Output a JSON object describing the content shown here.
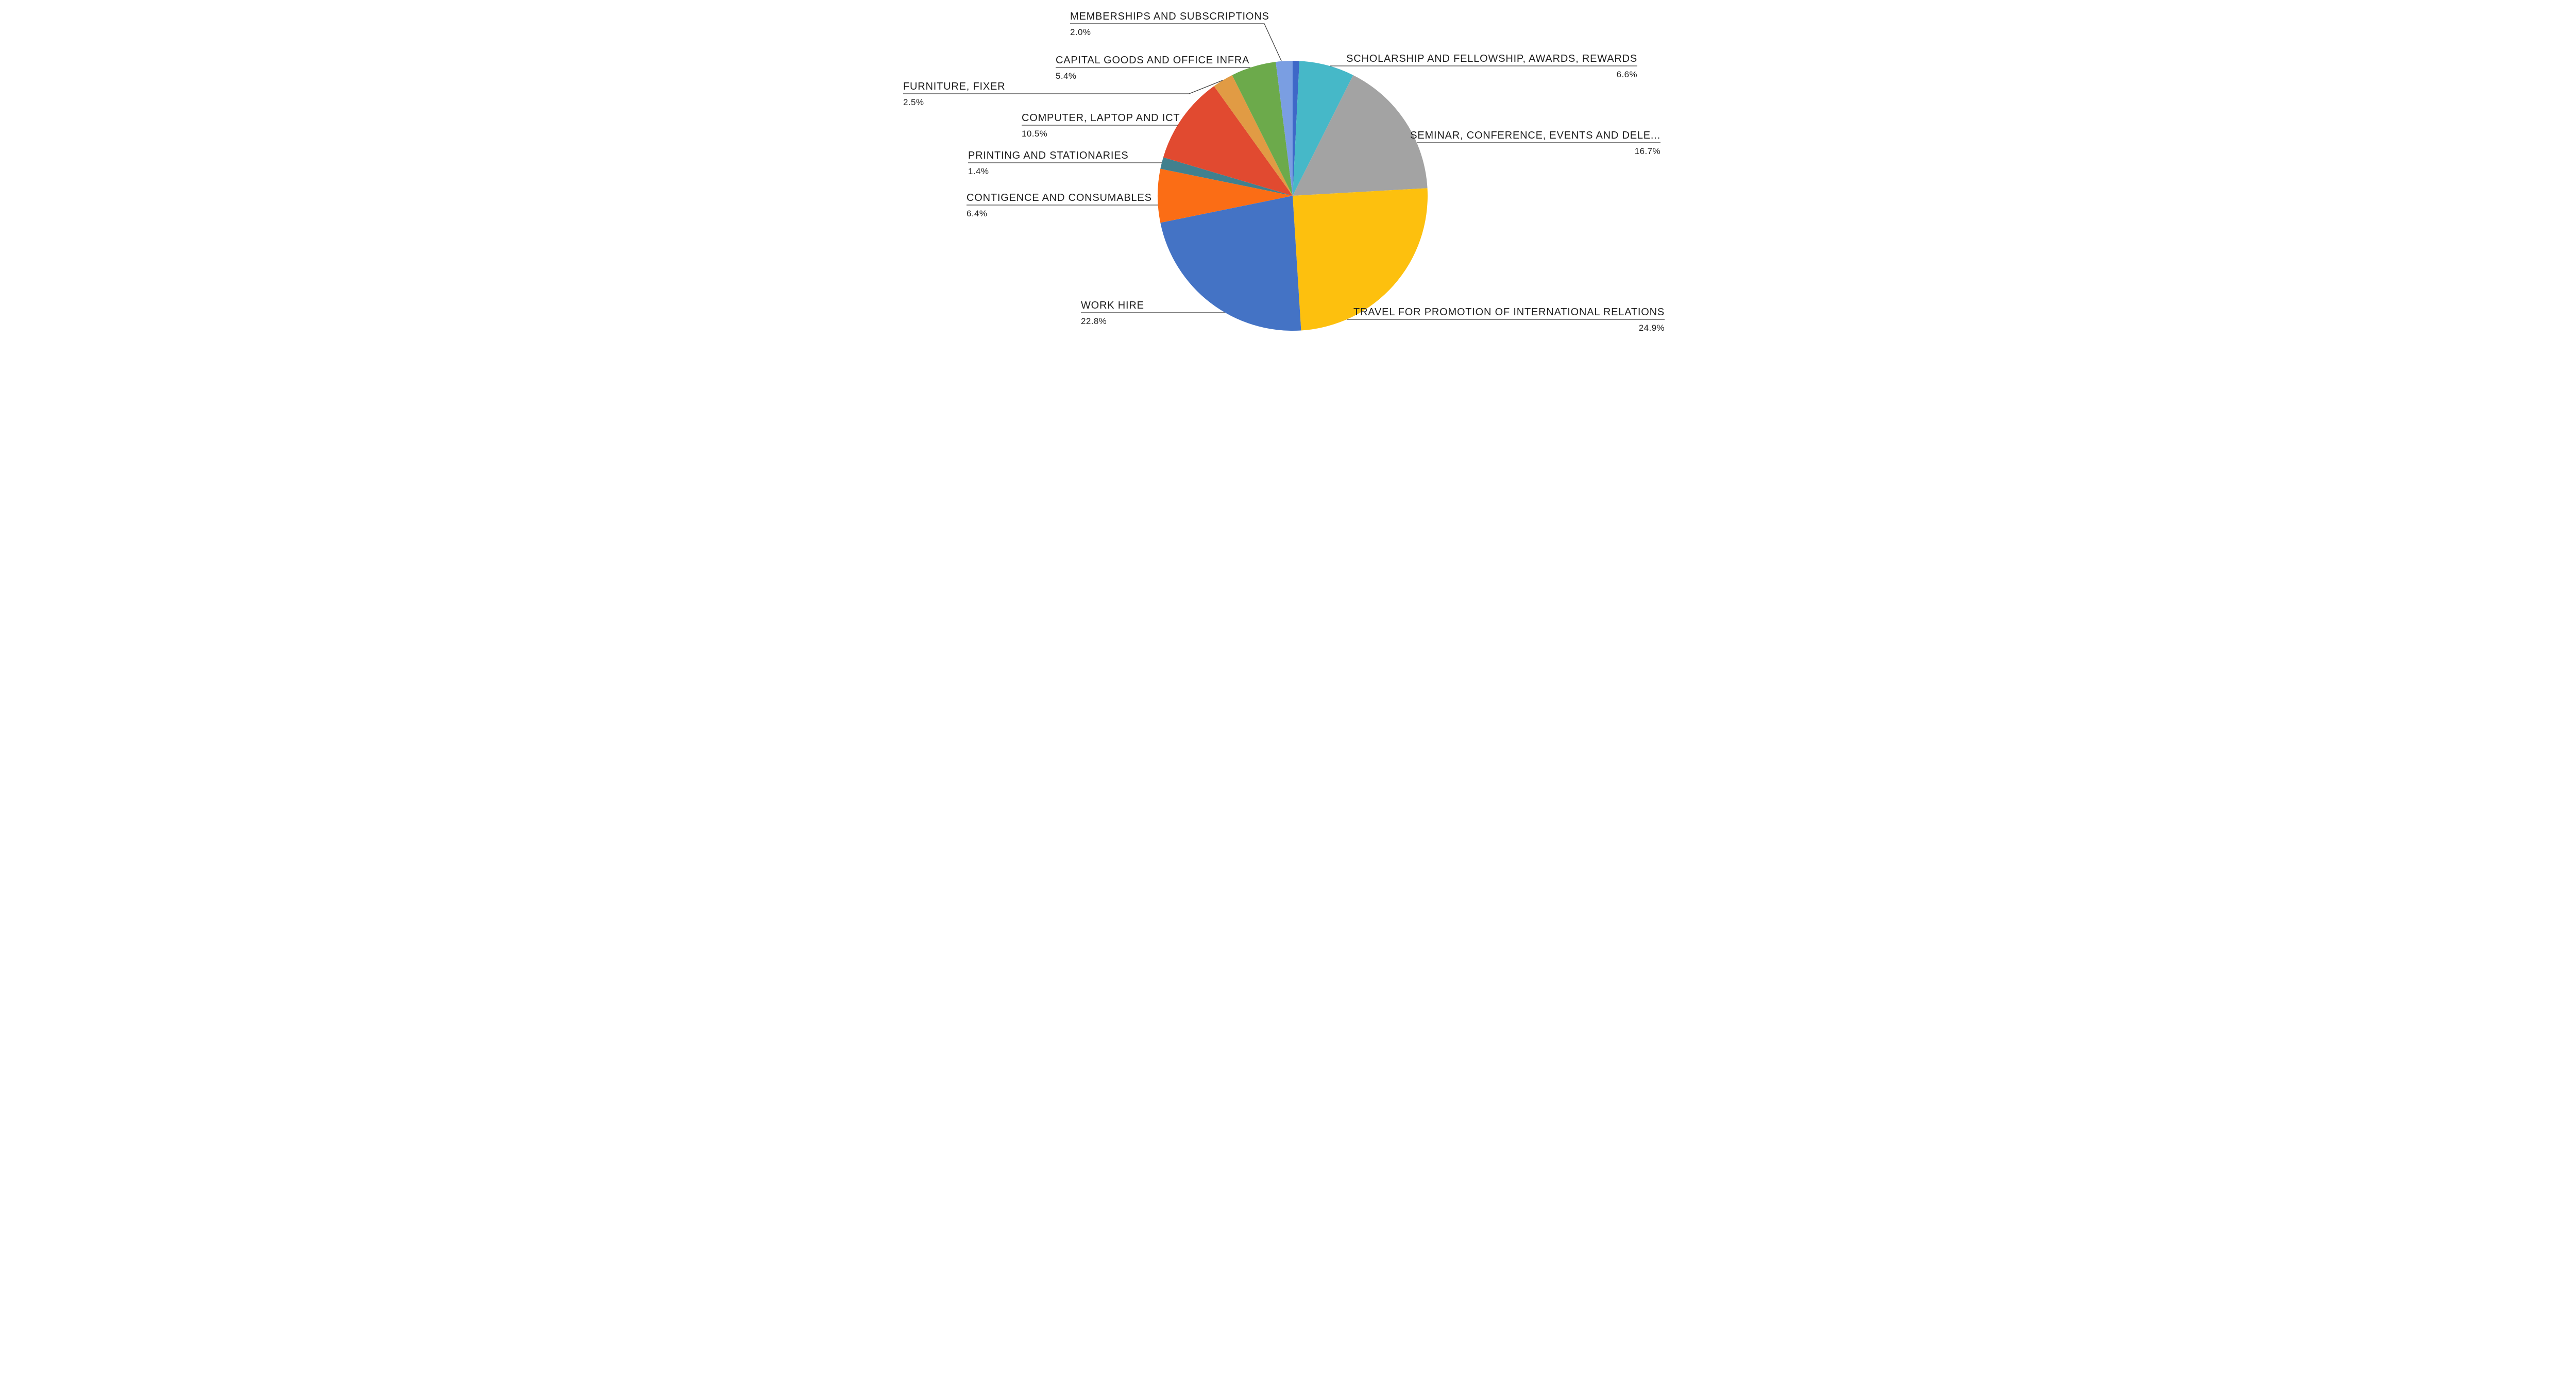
{
  "chart_data": {
    "type": "pie",
    "title": "",
    "legend_position": "none",
    "label_style": "callout-labels-with-leader-lines",
    "start_angle": "12-oclock-clockwise",
    "background": "#ffffff",
    "text_color": "#1e1e1e",
    "leader_line_color": "#3c3c3c",
    "slices": [
      {
        "label": "",
        "value": 0.8,
        "value_label": "",
        "color": "#3e68c8"
      },
      {
        "label": "SCHOLARSHIP AND FELLOWSHIP, AWARDS, REWARDS",
        "value": 6.6,
        "value_label": "6.6%",
        "color": "#46b8c8"
      },
      {
        "label": "SEMINAR, CONFERENCE, EVENTS AND DELE...",
        "value": 16.7,
        "value_label": "16.7%",
        "color": "#a3a3a3"
      },
      {
        "label": "TRAVEL FOR PROMOTION OF INTERNATIONAL RELATIONS",
        "value": 24.9,
        "value_label": "24.9%",
        "color": "#fdc00e"
      },
      {
        "label": "WORK HIRE",
        "value": 22.8,
        "value_label": "22.8%",
        "color": "#4473c5"
      },
      {
        "label": "CONTIGENCE AND CONSUMABLES",
        "value": 6.4,
        "value_label": "6.4%",
        "color": "#fb6d15"
      },
      {
        "label": "PRINTING AND STATIONARIES",
        "value": 1.4,
        "value_label": "1.4%",
        "color": "#41808e"
      },
      {
        "label": "COMPUTER, LAPTOP AND ICT",
        "value": 10.5,
        "value_label": "10.5%",
        "color": "#e14a30"
      },
      {
        "label": "FURNITURE, FIXER",
        "value": 2.5,
        "value_label": "2.5%",
        "color": "#e19b44"
      },
      {
        "label": "CAPITAL GOODS AND OFFICE INFRA",
        "value": 5.4,
        "value_label": "5.4%",
        "color": "#6caa4b"
      },
      {
        "label": "MEMBERSHIPS AND SUBSCRIPTIONS",
        "value": 2.0,
        "value_label": "2.0%",
        "color": "#7a9ee2"
      }
    ]
  }
}
